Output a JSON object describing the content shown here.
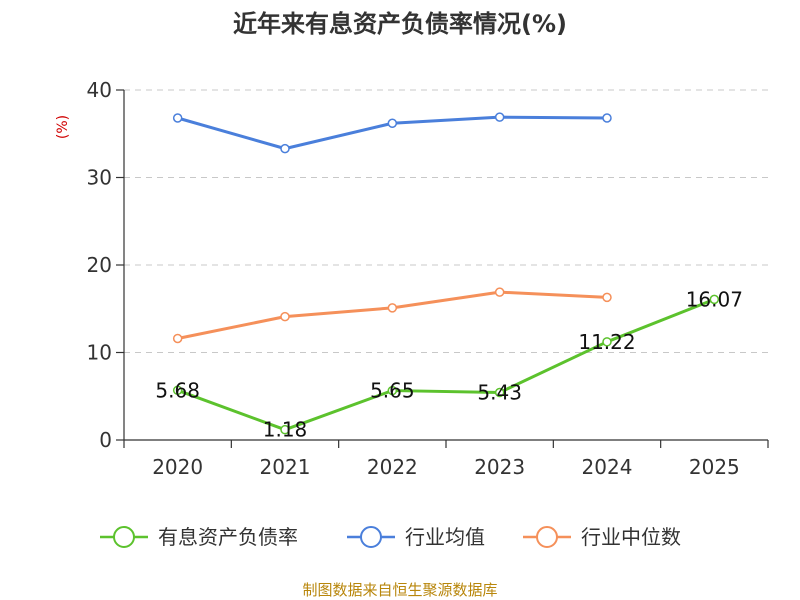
{
  "chart_data": {
    "type": "line",
    "title": "近年来有息资产负债率情况(%)",
    "ylabel": "(%)",
    "xlabel": "",
    "categories": [
      "2020",
      "2021",
      "2022",
      "2023",
      "2024",
      "2025"
    ],
    "ylim": [
      0,
      40
    ],
    "yticks": [
      "0",
      "10",
      "20",
      "30",
      "40"
    ],
    "grid": true,
    "legend_position": "bottom",
    "series": [
      {
        "name": "有息资产负债率",
        "color": "#5cc22d",
        "values": [
          5.68,
          1.18,
          5.65,
          5.43,
          11.22,
          16.07
        ],
        "labels": [
          "5.68",
          "1.18",
          "5.65",
          "5.43",
          "11.22",
          "16.07"
        ]
      },
      {
        "name": "行业均值",
        "color": "#4a7fdb",
        "values": [
          36.8,
          33.3,
          36.2,
          36.9,
          36.8,
          null
        ]
      },
      {
        "name": "行业中位数",
        "color": "#f5905a",
        "values": [
          11.6,
          14.1,
          15.1,
          16.9,
          16.3,
          null
        ]
      }
    ]
  },
  "footer": {
    "source": "制图数据来自恒生聚源数据库"
  }
}
